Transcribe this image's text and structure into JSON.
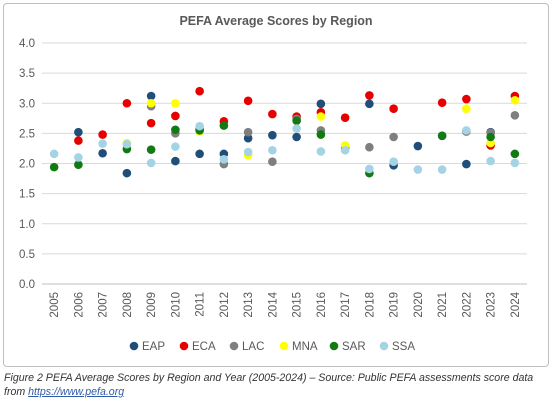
{
  "chart_data": {
    "type": "scatter",
    "title": "PEFA Average Scores by Region",
    "xlabel": "",
    "ylabel": "",
    "ylim": [
      0,
      4
    ],
    "y_ticks": [
      "0.0",
      "0.5",
      "1.0",
      "1.5",
      "2.0",
      "2.5",
      "3.0",
      "3.5",
      "4.0"
    ],
    "categories": [
      "2005",
      "2006",
      "2007",
      "2008",
      "2009",
      "2010",
      "2011",
      "2012",
      "2013",
      "2014",
      "2015",
      "2016",
      "2017",
      "2018",
      "2019",
      "2020",
      "2021",
      "2022",
      "2023",
      "2024"
    ],
    "grid": true,
    "legend_position": "bottom",
    "series": [
      {
        "name": "EAP",
        "color": "#1f4e79",
        "values": [
          null,
          2.52,
          2.17,
          1.84,
          3.12,
          2.04,
          2.16,
          2.16,
          2.42,
          2.47,
          2.44,
          2.99,
          2.26,
          2.99,
          1.97,
          2.29,
          2.46,
          1.99,
          2.52,
          null
        ]
      },
      {
        "name": "ECA",
        "color": "#e60000",
        "values": [
          null,
          2.38,
          2.48,
          3.0,
          2.67,
          2.79,
          3.2,
          2.7,
          3.04,
          2.82,
          2.78,
          2.85,
          2.76,
          3.13,
          2.91,
          null,
          3.01,
          3.07,
          2.3,
          3.12
        ]
      },
      {
        "name": "LAC",
        "color": "#7f7f7f",
        "values": [
          null,
          null,
          null,
          null,
          2.95,
          2.5,
          2.57,
          1.99,
          2.52,
          2.03,
          2.74,
          2.55,
          null,
          2.27,
          2.44,
          null,
          null,
          2.53,
          2.51,
          2.8
        ]
      },
      {
        "name": "MNA",
        "color": "#ffff00",
        "values": [
          null,
          null,
          null,
          2.34,
          3.0,
          3.0,
          2.53,
          null,
          2.14,
          null,
          null,
          2.78,
          2.3,
          null,
          null,
          null,
          null,
          2.91,
          2.34,
          3.05
        ]
      },
      {
        "name": "SAR",
        "color": "#127a12",
        "values": [
          1.94,
          1.98,
          null,
          2.24,
          2.23,
          2.56,
          2.55,
          2.63,
          null,
          null,
          2.71,
          2.48,
          null,
          1.84,
          null,
          null,
          2.46,
          null,
          2.44,
          2.16
        ]
      },
      {
        "name": "SSA",
        "color": "#a5d3e6",
        "values": [
          2.16,
          2.1,
          2.33,
          2.32,
          2.01,
          2.28,
          2.62,
          2.07,
          2.19,
          2.22,
          2.58,
          2.2,
          2.22,
          1.91,
          2.03,
          1.9,
          1.9,
          2.55,
          2.04,
          2.01
        ]
      }
    ]
  },
  "caption": {
    "text": "Figure 2 PEFA Average Scores by Region and Year (2005-2024) – Source: Public PEFA assessments score data from ",
    "link": "https://www.pefa.org"
  }
}
